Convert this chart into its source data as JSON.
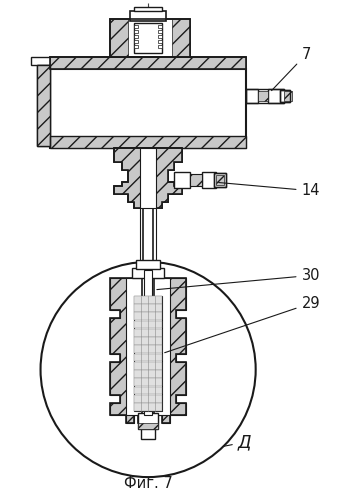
{
  "bg_color": "#ffffff",
  "line_color": "#1a1a1a",
  "title": "Фиг. 7",
  "label_7": "7",
  "label_14": "14",
  "label_30": "30",
  "label_29": "29",
  "label_D": "Д"
}
